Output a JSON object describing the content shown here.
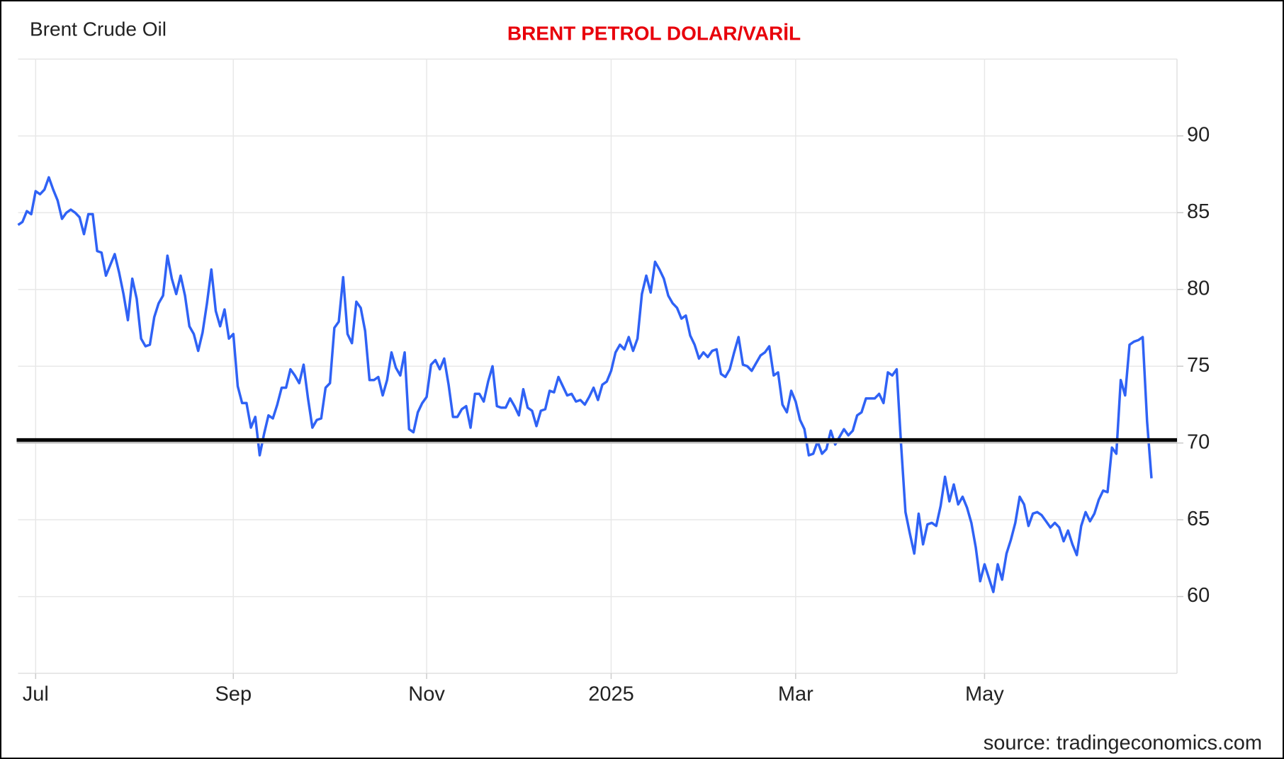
{
  "chart_data": {
    "type": "line",
    "title": "BRENT PETROL DOLAR/VARİL",
    "source": "source: tradingeconomics.com",
    "categories": [
      null,
      null,
      null,
      null,
      "Jul",
      null,
      null,
      null,
      null,
      null,
      null,
      null,
      null,
      null,
      null,
      null,
      null,
      null,
      null,
      null,
      null,
      null,
      null,
      null,
      null,
      null,
      null,
      null,
      null,
      null,
      null,
      null,
      null,
      null,
      null,
      null,
      null,
      null,
      null,
      null,
      null,
      null,
      null,
      null,
      null,
      null,
      null,
      null,
      null,
      "Sep",
      null,
      null,
      null,
      null,
      null,
      null,
      null,
      null,
      null,
      null,
      null,
      null,
      null,
      null,
      null,
      null,
      null,
      null,
      null,
      null,
      null,
      null,
      null,
      null,
      null,
      null,
      null,
      null,
      null,
      null,
      null,
      null,
      null,
      null,
      null,
      null,
      null,
      null,
      null,
      null,
      null,
      null,
      null,
      "Nov",
      null,
      null,
      null,
      null,
      null,
      null,
      null,
      null,
      null,
      null,
      null,
      null,
      null,
      null,
      null,
      null,
      null,
      null,
      null,
      null,
      null,
      null,
      null,
      null,
      null,
      null,
      null,
      null,
      null,
      null,
      null,
      null,
      null,
      null,
      null,
      null,
      null,
      null,
      null,
      null,
      null,
      "2025",
      null,
      null,
      null,
      null,
      null,
      null,
      null,
      null,
      null,
      null,
      null,
      null,
      null,
      null,
      null,
      null,
      null,
      null,
      null,
      null,
      null,
      null,
      null,
      null,
      null,
      null,
      null,
      null,
      null,
      null,
      null,
      null,
      null,
      null,
      null,
      null,
      null,
      null,
      null,
      null,
      null,
      "Mar",
      null,
      null,
      null,
      null,
      null,
      null,
      null,
      null,
      null,
      null,
      null,
      null,
      null,
      null,
      null,
      null,
      null,
      null,
      null,
      null,
      null,
      null,
      null,
      null,
      null,
      null,
      null,
      null,
      null,
      null,
      null,
      null,
      null,
      null,
      null,
      null,
      null,
      null,
      null,
      null,
      null,
      null,
      "May",
      null,
      null,
      null,
      null,
      null,
      null,
      null,
      null,
      null,
      null,
      null,
      null,
      null,
      null,
      null,
      null,
      null,
      null,
      null,
      null,
      null,
      null,
      null,
      null,
      null,
      null,
      null,
      null,
      null,
      null,
      null,
      null,
      null,
      null,
      null,
      null,
      null,
      null
    ],
    "series": [
      {
        "name": "Brent Crude Oil",
        "color": "#2f62f5",
        "values": [
          84.2,
          84.4,
          85.1,
          84.9,
          86.4,
          86.2,
          86.5,
          87.3,
          86.5,
          85.8,
          84.6,
          85.0,
          85.2,
          85.0,
          84.7,
          83.6,
          84.9,
          84.9,
          82.5,
          82.4,
          80.9,
          81.6,
          82.3,
          81.1,
          79.7,
          78.0,
          80.7,
          79.4,
          76.8,
          76.3,
          76.4,
          78.2,
          79.1,
          79.6,
          82.2,
          80.7,
          79.7,
          80.9,
          79.6,
          77.6,
          77.1,
          76.0,
          77.2,
          79.1,
          81.3,
          78.6,
          77.6,
          78.7,
          76.8,
          77.1,
          73.7,
          72.6,
          72.6,
          71.0,
          71.7,
          69.2,
          70.6,
          71.8,
          71.6,
          72.5,
          73.6,
          73.6,
          74.8,
          74.4,
          73.9,
          75.1,
          72.9,
          71.0,
          71.5,
          71.6,
          73.6,
          73.9,
          77.5,
          77.9,
          80.8,
          77.1,
          76.5,
          79.2,
          78.8,
          77.3,
          74.1,
          74.1,
          74.3,
          73.1,
          74.1,
          75.9,
          74.9,
          74.4,
          75.9,
          70.9,
          70.7,
          72.0,
          72.6,
          73.0,
          75.1,
          75.4,
          74.8,
          75.5,
          73.8,
          71.7,
          71.7,
          72.2,
          72.4,
          71.0,
          73.2,
          73.2,
          72.7,
          74.0,
          75.0,
          72.4,
          72.3,
          72.3,
          72.9,
          72.4,
          71.8,
          73.5,
          72.3,
          72.1,
          71.1,
          72.1,
          72.2,
          73.4,
          73.3,
          74.3,
          73.7,
          73.1,
          73.2,
          72.7,
          72.8,
          72.5,
          73.0,
          73.6,
          72.8,
          73.8,
          74.0,
          74.7,
          75.9,
          76.4,
          76.1,
          76.9,
          76.0,
          76.8,
          79.7,
          80.9,
          79.8,
          81.8,
          81.3,
          80.7,
          79.6,
          79.1,
          78.8,
          78.1,
          78.3,
          77.0,
          76.4,
          75.5,
          75.9,
          75.6,
          76.0,
          76.1,
          74.5,
          74.3,
          74.8,
          75.9,
          76.9,
          75.1,
          75.0,
          74.7,
          75.2,
          75.7,
          75.9,
          76.3,
          74.4,
          74.6,
          72.5,
          72.0,
          73.4,
          72.7,
          71.5,
          70.9,
          69.2,
          69.3,
          70.1,
          69.3,
          69.6,
          70.8,
          69.9,
          70.4,
          70.9,
          70.5,
          70.8,
          71.8,
          72.0,
          72.9,
          72.9,
          72.9,
          73.2,
          72.6,
          74.6,
          74.4,
          74.8,
          69.9,
          65.5,
          64.1,
          62.8,
          65.4,
          63.4,
          64.7,
          64.8,
          64.6,
          65.9,
          67.8,
          66.2,
          67.3,
          66.0,
          66.5,
          65.8,
          64.8,
          63.2,
          61.0,
          62.1,
          61.2,
          60.3,
          62.1,
          61.1,
          62.8,
          63.7,
          64.8,
          66.5,
          66.0,
          64.6,
          65.4,
          65.5,
          65.3,
          64.9,
          64.5,
          64.8,
          64.5,
          63.6,
          64.3,
          63.4,
          62.7,
          64.6,
          65.5,
          64.9,
          65.4,
          66.3,
          66.9,
          66.8,
          69.7,
          69.3,
          74.1,
          73.1,
          76.4,
          76.6,
          76.7,
          76.9,
          71.4,
          67.7
        ]
      }
    ],
    "ylim": [
      55,
      95
    ],
    "yticks": [
      60,
      65,
      70,
      75,
      80,
      85,
      90
    ],
    "reference_line": 70.2,
    "reference_color": "#000000",
    "grid": true
  }
}
